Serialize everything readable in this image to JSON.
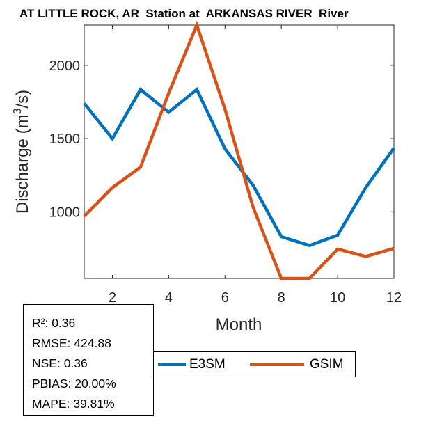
{
  "chart_data": {
    "type": "line",
    "title": "AT LITTLE ROCK, AR  Station at  ARKANSAS RIVER  River",
    "xlabel": "Month",
    "ylabel": "Discharge (m³/s)",
    "ylabel_main": "Discharge (m",
    "ylabel_sup": "3",
    "ylabel_tail": "/s)",
    "xlim": [
      1,
      12
    ],
    "ylim": [
      545,
      2275
    ],
    "xticks": [
      2,
      4,
      6,
      8,
      10,
      12
    ],
    "yticks": [
      1000,
      1500,
      2000
    ],
    "x": [
      1,
      2,
      3,
      4,
      5,
      6,
      7,
      8,
      9,
      10,
      11,
      12
    ],
    "series": [
      {
        "name": "E3SM",
        "color": "#0072BD",
        "values": [
          1740,
          1500,
          1835,
          1680,
          1835,
          1430,
          1180,
          830,
          770,
          840,
          1165,
          1435
        ]
      },
      {
        "name": "GSIM",
        "color": "#D95319",
        "values": [
          970,
          1165,
          1305,
          1810,
          2275,
          1700,
          1030,
          545,
          545,
          745,
          695,
          750
        ]
      }
    ],
    "grid": false,
    "legend_position": "bottom"
  },
  "stats": [
    "R²: 0.36",
    "RMSE: 424.88",
    "NSE: 0.36",
    "PBIAS: 20.00%",
    "MAPE: 39.81%"
  ]
}
